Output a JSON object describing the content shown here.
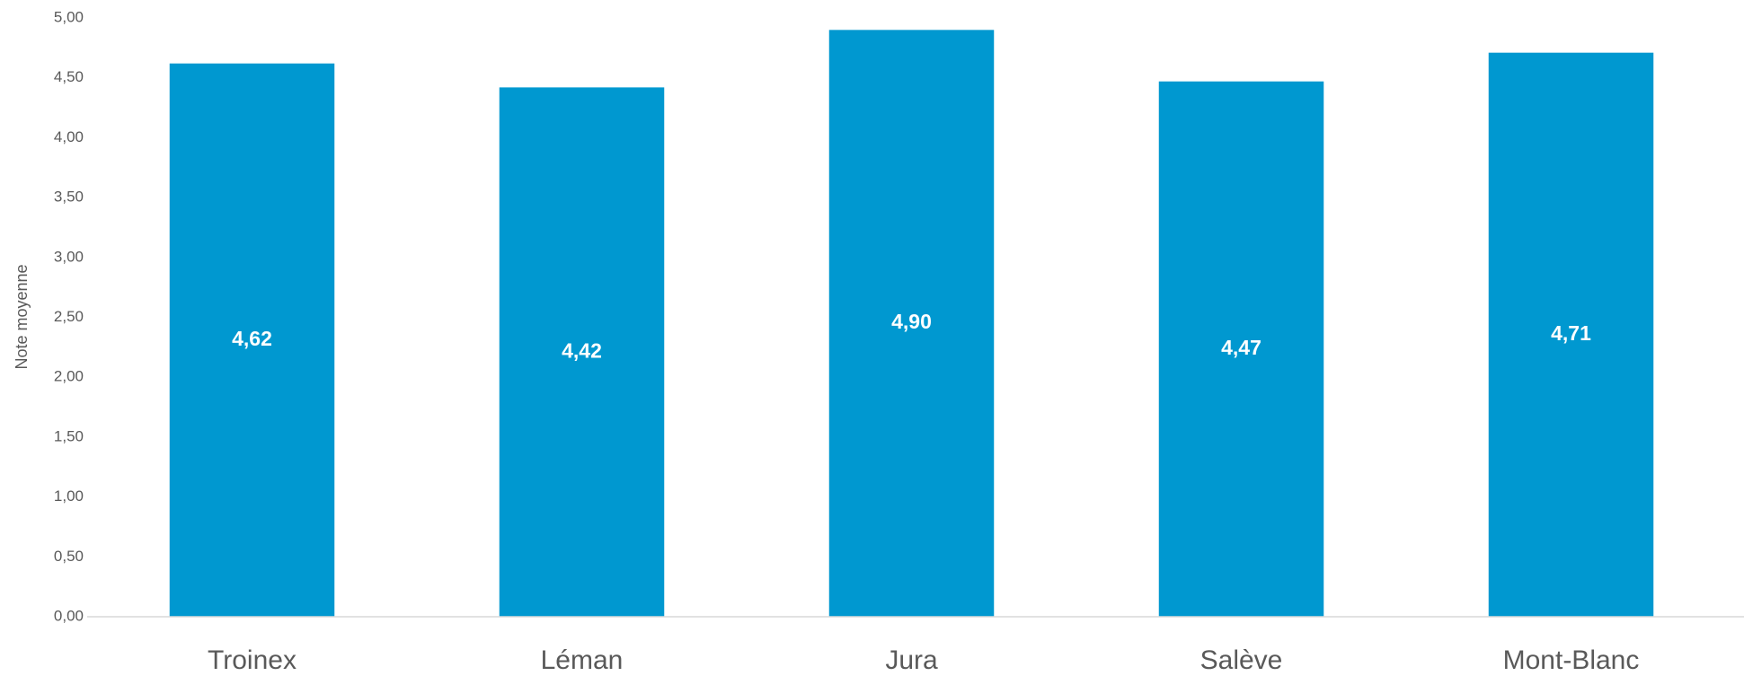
{
  "chart_data": {
    "type": "bar",
    "y_label": "Note moyenne",
    "categories": [
      "Troinex",
      "Léman",
      "Jura",
      "Salève",
      "Mont-Blanc"
    ],
    "values": [
      4.62,
      4.42,
      4.9,
      4.47,
      4.71
    ],
    "value_labels": [
      "4,62",
      "4,42",
      "4,90",
      "4,47",
      "4,71"
    ],
    "color": "#0098d0",
    "ylim": [
      0,
      5
    ],
    "yticks": [
      {
        "value": 0,
        "label": "0,00"
      },
      {
        "value": 0.5,
        "label": "0,50"
      },
      {
        "value": 1,
        "label": "1,00"
      },
      {
        "value": 1.5,
        "label": "1,50"
      },
      {
        "value": 2,
        "label": "2,00"
      },
      {
        "value": 2.5,
        "label": "2,50"
      },
      {
        "value": 3,
        "label": "3,00"
      },
      {
        "value": 3.5,
        "label": "3,50"
      },
      {
        "value": 4,
        "label": "4,00"
      },
      {
        "value": 4.5,
        "label": "4,50"
      },
      {
        "value": 5,
        "label": "5,00"
      }
    ],
    "grid": false
  }
}
